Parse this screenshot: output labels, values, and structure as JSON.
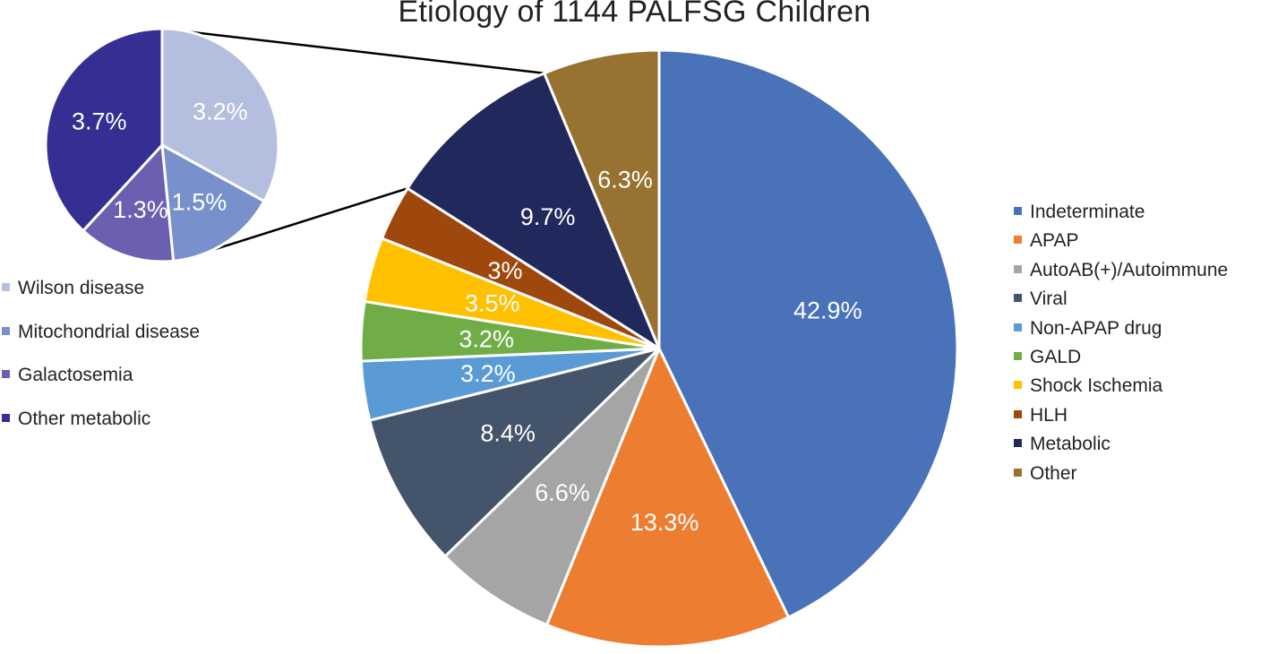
{
  "chart_data": [
    {
      "type": "pie",
      "title": "Etiology of 1144 PALFSG Children",
      "categories": [
        "Indeterminate",
        "APAP",
        "AutoAB(+)/Autoimmune",
        "Viral",
        "Non-APAP drug",
        "GALD",
        "Shock Ischemia",
        "HLH",
        "Metabolic",
        "Other"
      ],
      "values": [
        42.9,
        13.3,
        6.6,
        8.4,
        3.2,
        3.2,
        3.5,
        3,
        9.7,
        6.3
      ],
      "labels": [
        "42.9%",
        "13.3%",
        "6.6%",
        "8.4%",
        "3.2%",
        "3.2%",
        "3.5%",
        "3%",
        "9.7%",
        "6.3%"
      ],
      "colors": [
        "#4a72b8",
        "#ed7d31",
        "#a5a5a5",
        "#44546a",
        "#5b9bd5",
        "#70ad47",
        "#ffc000",
        "#9e480e",
        "#21295c",
        "#977230"
      ],
      "legend_position": "right"
    },
    {
      "type": "pie",
      "title": "",
      "categories": [
        "Wilson disease",
        "Mitochondrial disease",
        "Galactosemia",
        "Other metabolic"
      ],
      "values": [
        3.2,
        1.5,
        1.3,
        3.7
      ],
      "labels": [
        "3.2%",
        "1.5%",
        "1.3%",
        "3.7%"
      ],
      "colors": [
        "#b4bedf",
        "#7891cc",
        "#6a5fb0",
        "#352f94"
      ],
      "legend_position": "bottom-left"
    }
  ]
}
